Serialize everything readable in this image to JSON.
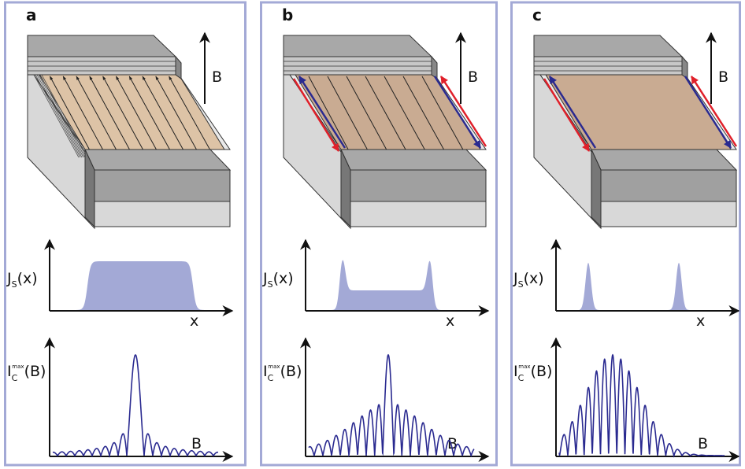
{
  "panels": [
    {
      "label": "a",
      "field_label": "B",
      "supercurrent_label": {
        "symbol": "J",
        "subscript": "S",
        "argument": "(x)"
      },
      "x_axis_label": "x",
      "critical_current_label": {
        "symbol": "I",
        "subscript": "C",
        "superscript": "max",
        "argument": "(B)"
      },
      "b_axis_label": "B"
    },
    {
      "label": "b",
      "field_label": "B",
      "supercurrent_label": {
        "symbol": "J",
        "subscript": "S",
        "argument": "(x)"
      },
      "x_axis_label": "x",
      "critical_current_label": {
        "symbol": "I",
        "subscript": "C",
        "superscript": "max",
        "argument": "(B)"
      },
      "b_axis_label": "B"
    },
    {
      "label": "c",
      "field_label": "B",
      "supercurrent_label": {
        "symbol": "J",
        "subscript": "S",
        "argument": "(x)"
      },
      "x_axis_label": "x",
      "critical_current_label": {
        "symbol": "I",
        "subscript": "C",
        "superscript": "max",
        "argument": "(B)"
      },
      "b_axis_label": "B"
    }
  ]
}
